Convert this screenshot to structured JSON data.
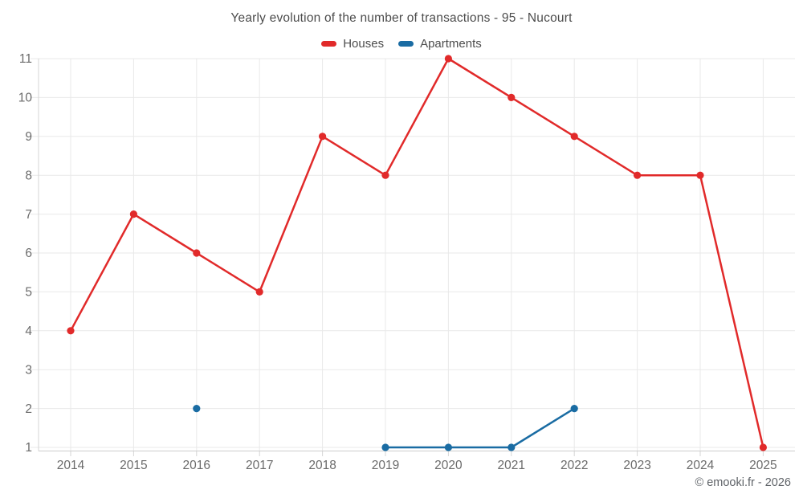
{
  "header": {
    "title": "Yearly evolution of the number of transactions - 95 - Nucourt",
    "legend": [
      {
        "label": "Houses",
        "color": "#e12a2a"
      },
      {
        "label": "Apartments",
        "color": "#1a6ca3"
      }
    ]
  },
  "footer": {
    "credit": "© emooki.fr - 2026"
  },
  "chart_data": {
    "type": "line",
    "title": "Yearly evolution of the number of transactions - 95 - Nucourt",
    "categories": [
      "2014",
      "2015",
      "2016",
      "2017",
      "2018",
      "2019",
      "2020",
      "2021",
      "2022",
      "2023",
      "2024",
      "2025"
    ],
    "series": [
      {
        "name": "Houses",
        "color": "#e12a2a",
        "values": [
          4,
          7,
          6,
          5,
          9,
          8,
          11,
          10,
          9,
          8,
          8,
          1
        ]
      },
      {
        "name": "Apartments",
        "color": "#1a6ca3",
        "values": [
          null,
          null,
          2,
          null,
          null,
          1,
          1,
          1,
          2,
          null,
          null,
          null
        ]
      }
    ],
    "xlabel": "",
    "ylabel": "",
    "ylim": [
      1,
      11
    ],
    "yticks": [
      1,
      2,
      3,
      4,
      5,
      6,
      7,
      8,
      9,
      10,
      11
    ],
    "grid": true,
    "legend_position": "top",
    "marker_style": "circle",
    "grid_color": "#e9e9e9",
    "axis_color": "#cccccc",
    "tick_color": "#d6d6d6",
    "tick_label_color": "#6b6b6b"
  }
}
